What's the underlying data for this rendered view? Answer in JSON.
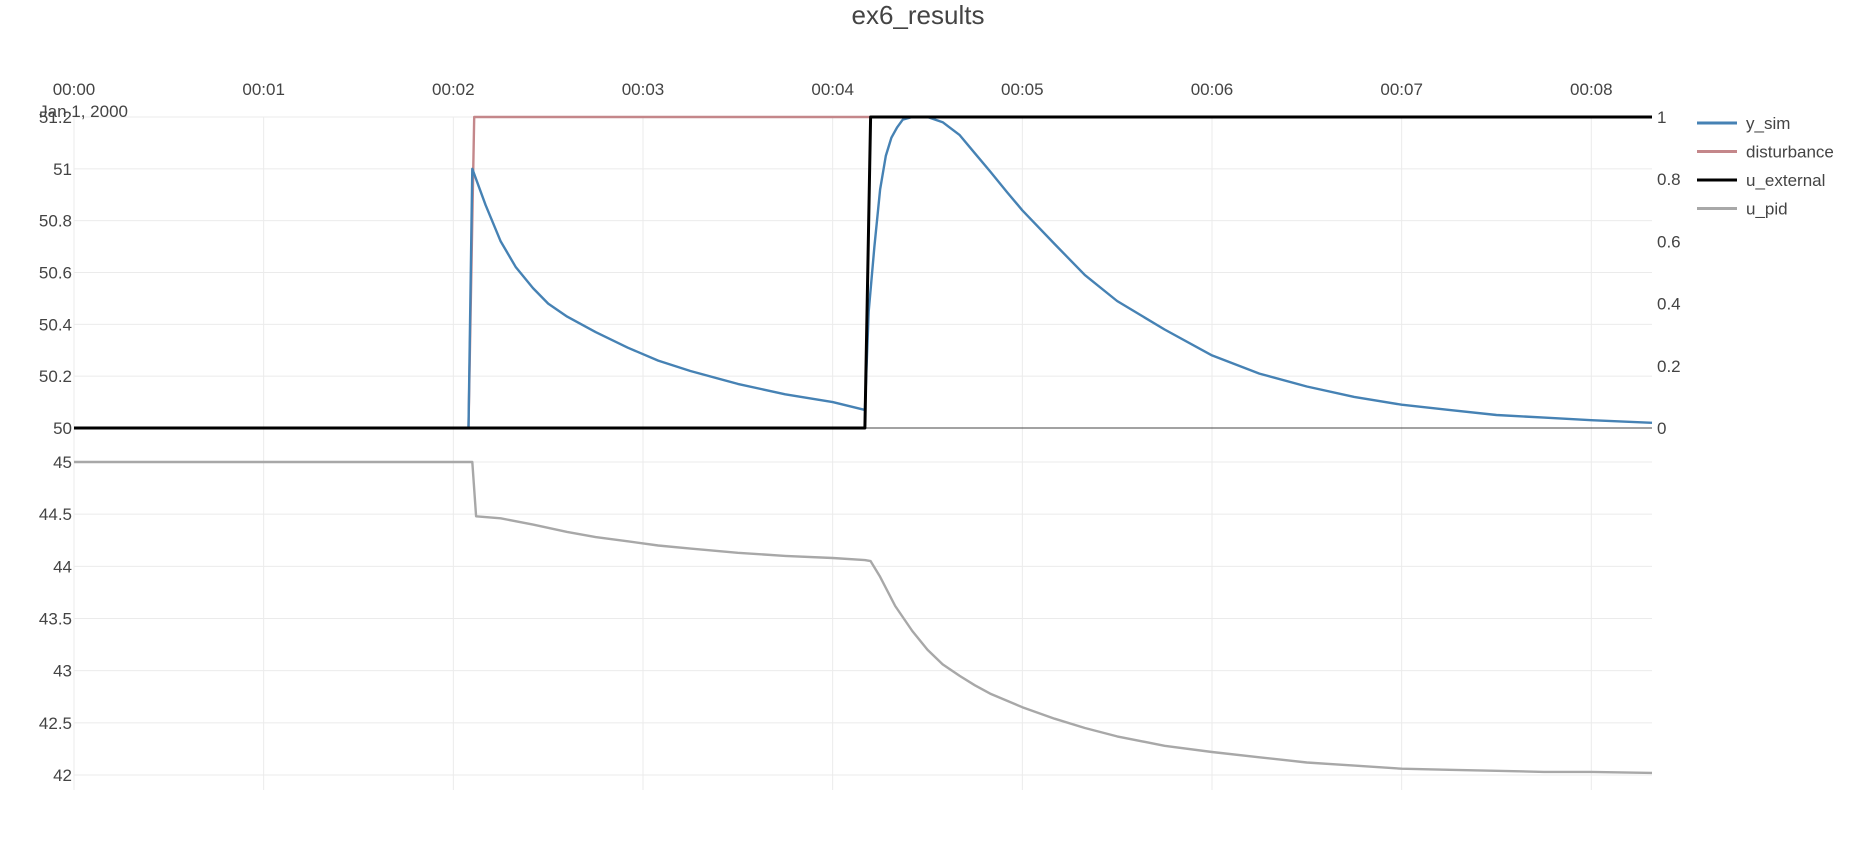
{
  "chart_data": {
    "type": "line",
    "title": "ex6_results",
    "x_tick_labels": [
      "00:00",
      "00:01",
      "00:02",
      "00:03",
      "00:04",
      "00:05",
      "00:06",
      "00:07",
      "00:08"
    ],
    "x_date_label": "Jan 1, 2000",
    "x_unit": "minutes",
    "x_range": [
      0,
      8.32
    ],
    "x_axis_position": "top",
    "grid": true,
    "legend_position": "top-right",
    "subplots": [
      {
        "id": "top",
        "y_left": {
          "range": [
            50,
            51.2
          ],
          "ticks": [
            50,
            50.2,
            50.4,
            50.6,
            50.8,
            51,
            51.2
          ]
        },
        "y_right": {
          "range": [
            0,
            1
          ],
          "ticks": [
            0,
            0.2,
            0.4,
            0.6,
            0.8,
            1
          ]
        }
      },
      {
        "id": "bottom",
        "y_left": {
          "range": [
            42,
            45
          ],
          "ticks": [
            42,
            42.5,
            43,
            43.5,
            44,
            44.5,
            45
          ]
        }
      }
    ],
    "series": [
      {
        "name": "y_sim",
        "color": "#4682b4",
        "subplot": "top",
        "axis": "left",
        "x": [
          0,
          2.08,
          2.1,
          2.17,
          2.25,
          2.33,
          2.42,
          2.5,
          2.6,
          2.75,
          2.92,
          3.08,
          3.25,
          3.5,
          3.75,
          4.0,
          4.17,
          4.19,
          4.22,
          4.25,
          4.28,
          4.31,
          4.34,
          4.37,
          4.42,
          4.5,
          4.58,
          4.67,
          4.75,
          4.83,
          4.92,
          5.0,
          5.17,
          5.33,
          5.5,
          5.75,
          6.0,
          6.25,
          6.5,
          6.75,
          7.0,
          7.25,
          7.5,
          7.75,
          8.0,
          8.32
        ],
        "y": [
          50,
          50,
          51.0,
          50.86,
          50.72,
          50.62,
          50.54,
          50.48,
          50.43,
          50.37,
          50.31,
          50.26,
          50.22,
          50.17,
          50.13,
          50.1,
          50.07,
          50.45,
          50.7,
          50.92,
          51.05,
          51.12,
          51.16,
          51.19,
          51.2,
          51.2,
          51.18,
          51.13,
          51.06,
          50.99,
          50.91,
          50.84,
          50.71,
          50.59,
          50.49,
          50.38,
          50.28,
          50.21,
          50.16,
          50.12,
          50.09,
          50.07,
          50.05,
          50.04,
          50.03,
          50.02
        ]
      },
      {
        "name": "disturbance",
        "color": "#c4878a",
        "subplot": "top",
        "axis": "right",
        "x": [
          0,
          2.08,
          2.11,
          4.17,
          4.2,
          8.32
        ],
        "y": [
          0,
          0,
          1,
          1,
          1,
          1
        ]
      },
      {
        "name": "u_external",
        "color": "#000000",
        "subplot": "top",
        "axis": "right",
        "x": [
          0,
          4.17,
          4.2,
          8.32
        ],
        "y": [
          0,
          0,
          1,
          1
        ]
      },
      {
        "name": "u_pid",
        "color": "#a8a8a8",
        "subplot": "bottom",
        "axis": "left",
        "x": [
          0,
          2.1,
          2.12,
          2.25,
          2.42,
          2.6,
          2.75,
          2.92,
          3.08,
          3.25,
          3.5,
          3.75,
          4.0,
          4.17,
          4.2,
          4.25,
          4.33,
          4.42,
          4.5,
          4.58,
          4.67,
          4.75,
          4.83,
          5.0,
          5.17,
          5.33,
          5.5,
          5.75,
          6.0,
          6.25,
          6.5,
          6.75,
          7.0,
          7.25,
          7.5,
          7.75,
          8.0,
          8.32
        ],
        "y": [
          45,
          45,
          44.48,
          44.46,
          44.4,
          44.33,
          44.28,
          44.24,
          44.2,
          44.17,
          44.13,
          44.1,
          44.08,
          44.06,
          44.05,
          43.9,
          43.62,
          43.38,
          43.2,
          43.06,
          42.95,
          42.86,
          42.78,
          42.65,
          42.54,
          42.45,
          42.37,
          42.28,
          42.22,
          42.17,
          42.12,
          42.09,
          42.06,
          42.05,
          42.04,
          42.03,
          42.03,
          42.02
        ]
      }
    ]
  }
}
